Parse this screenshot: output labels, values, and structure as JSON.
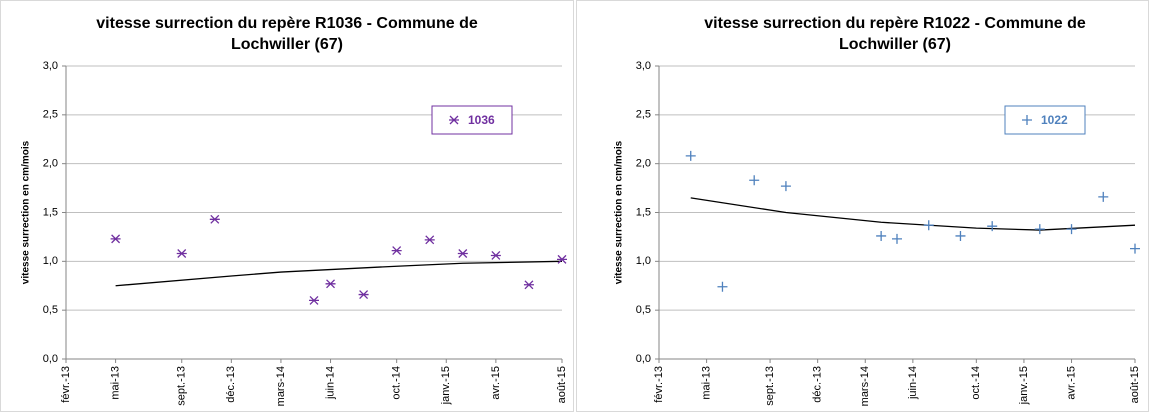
{
  "chart_data": [
    {
      "type": "scatter",
      "title": [
        "vitesse surrection du  repère R1036 - Commune de",
        "Lochwiller (67)"
      ],
      "ylabel": "vitesse surrection en cm/mois",
      "x": [
        "2013-05",
        "2013-09",
        "2013-11",
        "2014-05",
        "2014-06",
        "2014-08",
        "2014-10",
        "2014-12",
        "2015-02",
        "2015-04",
        "2015-06",
        "2015-08"
      ],
      "series": [
        {
          "name": "1036",
          "color": "#7030a0",
          "marker": "star",
          "values": [
            1.23,
            1.08,
            1.43,
            0.6,
            0.77,
            0.66,
            1.11,
            1.22,
            1.08,
            1.06,
            0.76,
            1.02
          ]
        }
      ],
      "trendline": {
        "color": "#000000",
        "x": [
          "2013-05",
          "2013-12",
          "2014-03",
          "2014-10",
          "2015-02",
          "2015-08"
        ],
        "values": [
          0.75,
          0.85,
          0.89,
          0.95,
          0.98,
          1.0
        ]
      },
      "xlim": [
        "2013-02",
        "2015-08"
      ],
      "xticks": [
        {
          "value": "2013-02",
          "label": "févr.-13"
        },
        {
          "value": "2013-05",
          "label": "mai-13"
        },
        {
          "value": "2013-09",
          "label": "sept.-13"
        },
        {
          "value": "2013-12",
          "label": "déc.-13"
        },
        {
          "value": "2014-03",
          "label": "mars-14"
        },
        {
          "value": "2014-06",
          "label": "juin-14"
        },
        {
          "value": "2014-10",
          "label": "oct.-14"
        },
        {
          "value": "2015-01",
          "label": "janv.-15"
        },
        {
          "value": "2015-04",
          "label": "avr.-15"
        },
        {
          "value": "2015-08",
          "label": "août-15"
        }
      ],
      "ylim": [
        0,
        3
      ],
      "yticks": [
        {
          "value": 0,
          "label": "0,0"
        },
        {
          "value": 0.5,
          "label": "0,5"
        },
        {
          "value": 1,
          "label": "1,0"
        },
        {
          "value": 1.5,
          "label": "1,5"
        },
        {
          "value": 2,
          "label": "2,0"
        },
        {
          "value": 2.5,
          "label": "2,5"
        },
        {
          "value": 3,
          "label": "3,0"
        }
      ],
      "grid": true,
      "legend": "upper right"
    },
    {
      "type": "scatter",
      "title": [
        "vitesse surrection du repère R1022 - Commune de",
        "Lochwiller (67)"
      ],
      "ylabel": "vitesse surrection en cm/mois",
      "x": [
        "2013-04",
        "2013-06",
        "2013-08",
        "2013-10",
        "2014-04",
        "2014-05",
        "2014-07",
        "2014-09",
        "2014-11",
        "2015-02",
        "2015-04",
        "2015-06",
        "2015-08"
      ],
      "series": [
        {
          "name": "1022",
          "color": "#4f81bd",
          "marker": "plus",
          "values": [
            2.08,
            0.74,
            1.83,
            1.77,
            1.26,
            1.23,
            1.37,
            1.26,
            1.36,
            1.33,
            1.33,
            1.66,
            1.13
          ]
        }
      ],
      "trendline": {
        "color": "#000000",
        "x": [
          "2013-04",
          "2013-10",
          "2014-04",
          "2014-10",
          "2015-02",
          "2015-08"
        ],
        "values": [
          1.65,
          1.5,
          1.4,
          1.34,
          1.32,
          1.37
        ]
      },
      "xlim": [
        "2013-02",
        "2015-08"
      ],
      "xticks": [
        {
          "value": "2013-02",
          "label": "févr.-13"
        },
        {
          "value": "2013-05",
          "label": "mai-13"
        },
        {
          "value": "2013-09",
          "label": "sept.-13"
        },
        {
          "value": "2013-12",
          "label": "déc.-13"
        },
        {
          "value": "2014-03",
          "label": "mars-14"
        },
        {
          "value": "2014-06",
          "label": "juin-14"
        },
        {
          "value": "2014-10",
          "label": "oct.-14"
        },
        {
          "value": "2015-01",
          "label": "janv.-15"
        },
        {
          "value": "2015-04",
          "label": "avr.-15"
        },
        {
          "value": "2015-08",
          "label": "août-15"
        }
      ],
      "ylim": [
        0,
        3
      ],
      "yticks": [
        {
          "value": 0,
          "label": "0,0"
        },
        {
          "value": 0.5,
          "label": "0,5"
        },
        {
          "value": 1,
          "label": "1,0"
        },
        {
          "value": 1.5,
          "label": "1,5"
        },
        {
          "value": 2,
          "label": "2,0"
        },
        {
          "value": 2.5,
          "label": "2,5"
        },
        {
          "value": 3,
          "label": "3,0"
        }
      ],
      "grid": true,
      "legend": "upper right"
    }
  ]
}
